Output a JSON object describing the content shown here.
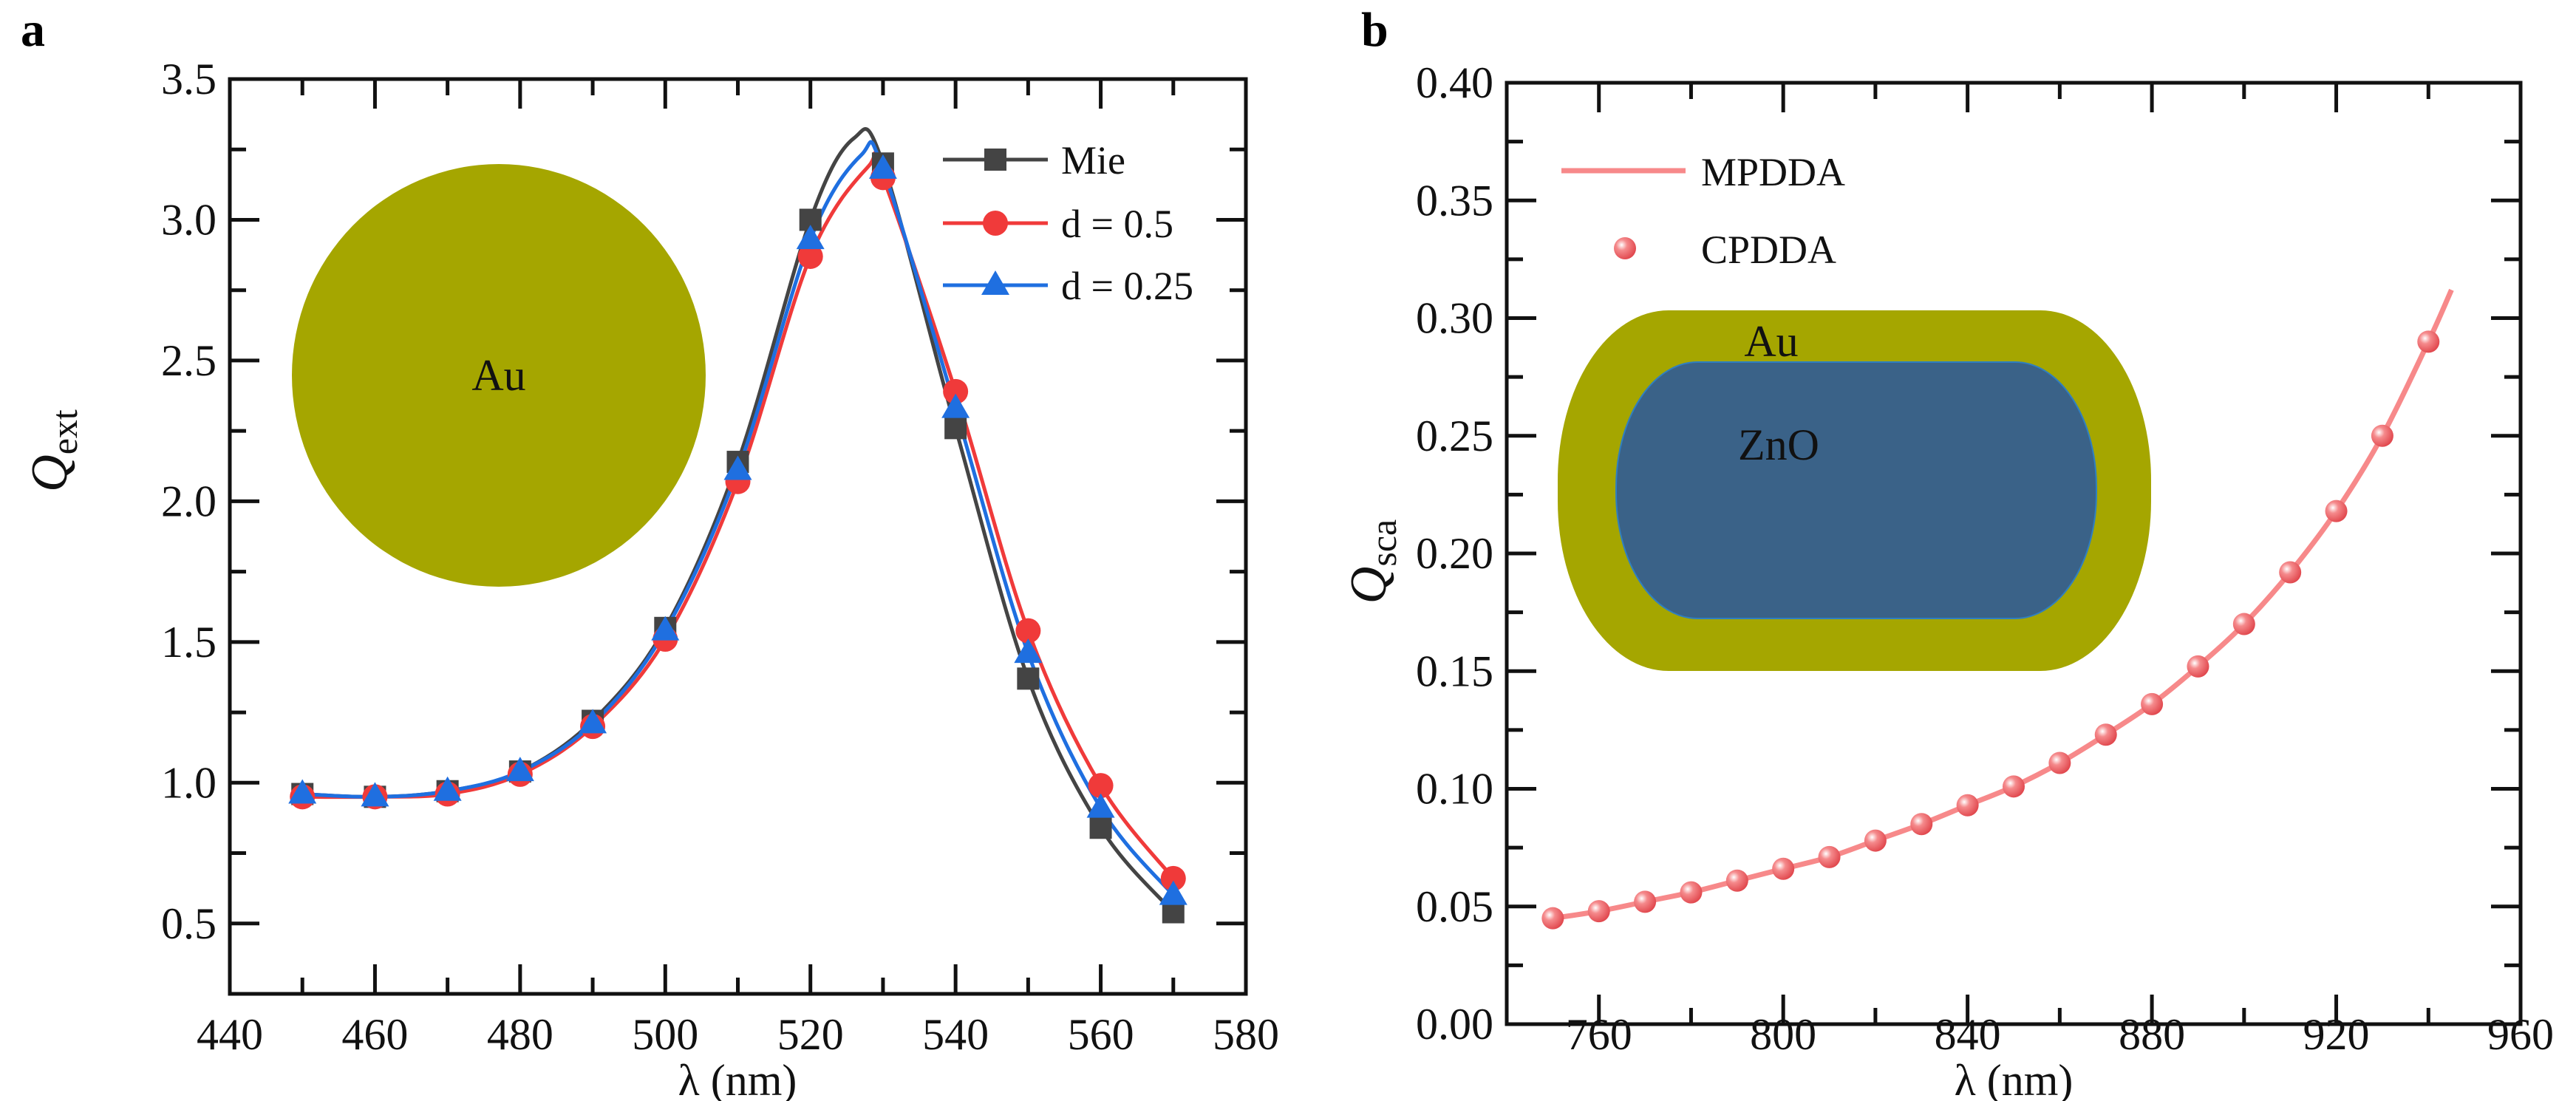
{
  "chart_data": [
    {
      "type": "line",
      "panel_label": "a",
      "xlabel": "λ (nm)",
      "ylabel": "Q",
      "ylabel_sub": "ext",
      "xlim": [
        440,
        580
      ],
      "ylim": [
        0.25,
        3.5
      ],
      "xticks": [
        440,
        460,
        480,
        500,
        520,
        540,
        560,
        580
      ],
      "yticks": [
        0.5,
        1.0,
        1.5,
        2.0,
        2.5,
        3.0,
        3.5
      ],
      "ytick_labels": [
        "0.5",
        "1.0",
        "1.5",
        "2.0",
        "2.5",
        "3.0",
        "3.5"
      ],
      "grid": false,
      "legend_placement": "top-right",
      "x": [
        450,
        460,
        470,
        480,
        490,
        500,
        510,
        520,
        530,
        540,
        550,
        560,
        570
      ],
      "series": [
        {
          "name": "Mie",
          "color": "#444444",
          "marker": "square",
          "values": [
            0.96,
            0.95,
            0.97,
            1.04,
            1.22,
            1.55,
            2.14,
            3.0,
            3.2,
            2.26,
            1.37,
            0.84,
            0.54
          ],
          "peak": [
            526,
            3.29
          ]
        },
        {
          "name": "d = 0.5",
          "color": "#f03a3a",
          "marker": "circle",
          "values": [
            0.95,
            0.95,
            0.96,
            1.03,
            1.2,
            1.51,
            2.07,
            2.87,
            3.15,
            2.39,
            1.54,
            0.99,
            0.66
          ],
          "peak": [
            528,
            3.19
          ]
        },
        {
          "name": "d = 0.25",
          "color": "#1f6fe0",
          "marker": "triangle",
          "values": [
            0.96,
            0.95,
            0.97,
            1.04,
            1.21,
            1.54,
            2.11,
            2.93,
            3.18,
            2.33,
            1.46,
            0.91,
            0.6
          ],
          "peak": [
            527,
            3.23
          ]
        }
      ],
      "inset": {
        "label": "Au",
        "color": "#a5a600"
      }
    },
    {
      "type": "line",
      "panel_label": "b",
      "xlabel": "λ (nm)",
      "ylabel": "Q",
      "ylabel_sub": "sca",
      "xlim": [
        740,
        960
      ],
      "ylim": [
        0,
        0.4
      ],
      "xticks": [
        760,
        800,
        840,
        880,
        920,
        960
      ],
      "yticks": [
        0,
        0.05,
        0.1,
        0.15,
        0.2,
        0.25,
        0.3,
        0.35,
        0.4
      ],
      "ytick_labels": [
        "0.00",
        "0.05",
        "0.10",
        "0.15",
        "0.20",
        "0.25",
        "0.30",
        "0.35",
        "0.40"
      ],
      "grid": false,
      "legend_placement": "top-left",
      "series": [
        {
          "name": "MPDDA",
          "color": "#f7898a",
          "style": "line",
          "x": [
            750,
            760,
            770,
            780,
            790,
            800,
            810,
            820,
            830,
            840,
            850,
            860,
            870,
            880,
            890,
            900,
            910,
            920,
            930,
            940,
            945
          ],
          "values": [
            0.045,
            0.048,
            0.052,
            0.056,
            0.061,
            0.066,
            0.071,
            0.078,
            0.085,
            0.093,
            0.101,
            0.111,
            0.123,
            0.136,
            0.152,
            0.17,
            0.192,
            0.218,
            0.25,
            0.29,
            0.312
          ]
        },
        {
          "name": "CPDDA",
          "color": "#f06a6e",
          "style": "marker",
          "x": [
            750,
            760,
            770,
            780,
            790,
            800,
            810,
            820,
            830,
            840,
            850,
            860,
            870,
            880,
            890,
            900,
            910,
            920,
            930,
            940
          ],
          "values": [
            0.045,
            0.048,
            0.052,
            0.056,
            0.061,
            0.066,
            0.071,
            0.078,
            0.085,
            0.093,
            0.101,
            0.111,
            0.123,
            0.136,
            0.152,
            0.17,
            0.192,
            0.218,
            0.25,
            0.29
          ]
        }
      ],
      "inset": {
        "shell_label": "Au",
        "core_label": "ZnO",
        "shell_color": "#a5a600",
        "core_color": "#3a6288"
      }
    }
  ]
}
